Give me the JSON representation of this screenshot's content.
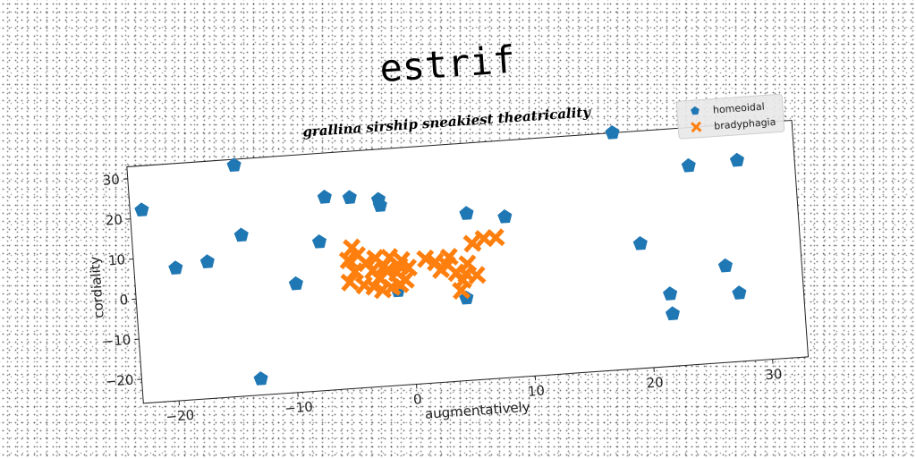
{
  "chart_data": {
    "type": "scatter",
    "title": "estrif",
    "subtitle": "grallina sirship sneakiest theatricality",
    "xlabel": "augmentatively",
    "ylabel": "cordiality",
    "xlim": [
      -23,
      33
    ],
    "ylim": [
      -26,
      33
    ],
    "xticks": [
      -20,
      -10,
      0,
      10,
      20,
      30
    ],
    "yticks": [
      -20,
      -10,
      0,
      10,
      20,
      30
    ],
    "xtick_labels": [
      "−20",
      "−10",
      "0",
      "10",
      "20",
      "30"
    ],
    "ytick_labels": [
      "−20",
      "−10",
      "0",
      "10",
      "20",
      "30"
    ],
    "grid": false,
    "legend_position": "top-right",
    "series": [
      {
        "name": "homeoidal",
        "marker": "pentagon",
        "color": "#1f77b4",
        "points": [
          [
            -22,
            22
          ],
          [
            -19.5,
            7
          ],
          [
            -16.8,
            8
          ],
          [
            -14,
            31.5
          ],
          [
            -13.8,
            14
          ],
          [
            -13,
            -22
          ],
          [
            -9.5,
            1
          ],
          [
            -7.3,
            11
          ],
          [
            -6.6,
            22
          ],
          [
            -4.5,
            21.5
          ],
          [
            -2.1,
            20.5
          ],
          [
            -2,
            19
          ],
          [
            -1,
            -2.5
          ],
          [
            4.7,
            -5.5
          ],
          [
            5.2,
            15.5
          ],
          [
            8.4,
            14
          ],
          [
            17.9,
            33
          ],
          [
            19.6,
            5
          ],
          [
            21.8,
            -8
          ],
          [
            21.9,
            -13
          ],
          [
            24.1,
            23.5
          ],
          [
            26.6,
            -2
          ],
          [
            27.6,
            -9
          ],
          [
            28.2,
            24
          ]
        ]
      },
      {
        "name": "bradyphagia",
        "marker": "x",
        "color": "#ff7f0e",
        "points": [
          [
            -4.6,
            9
          ],
          [
            -5,
            6
          ],
          [
            -4.2,
            7
          ],
          [
            -4.5,
            3
          ],
          [
            -3.5,
            5
          ],
          [
            -5,
            0.5
          ],
          [
            -3.8,
            -0.5
          ],
          [
            -3,
            3
          ],
          [
            -2.7,
            6
          ],
          [
            -2.5,
            1
          ],
          [
            -2,
            4
          ],
          [
            -1.5,
            6
          ],
          [
            -1,
            2
          ],
          [
            -0.5,
            5
          ],
          [
            -0.3,
            0
          ],
          [
            0,
            3
          ],
          [
            -2.3,
            -2
          ],
          [
            -1.5,
            -1.5
          ],
          [
            -0.8,
            -1
          ],
          [
            -3,
            -1
          ],
          [
            -1.8,
            2.5
          ],
          [
            -0.7,
            3.5
          ],
          [
            1.5,
            5
          ],
          [
            2.3,
            4
          ],
          [
            2.7,
            2
          ],
          [
            3.3,
            3
          ],
          [
            4,
            1
          ],
          [
            3.5,
            5
          ],
          [
            4.5,
            -1
          ],
          [
            4.8,
            0.5
          ],
          [
            5,
            3
          ],
          [
            5.5,
            8
          ],
          [
            6.5,
            9
          ],
          [
            7.5,
            9
          ],
          [
            5.7,
            0
          ],
          [
            4.3,
            -3.5
          ]
        ]
      }
    ]
  }
}
